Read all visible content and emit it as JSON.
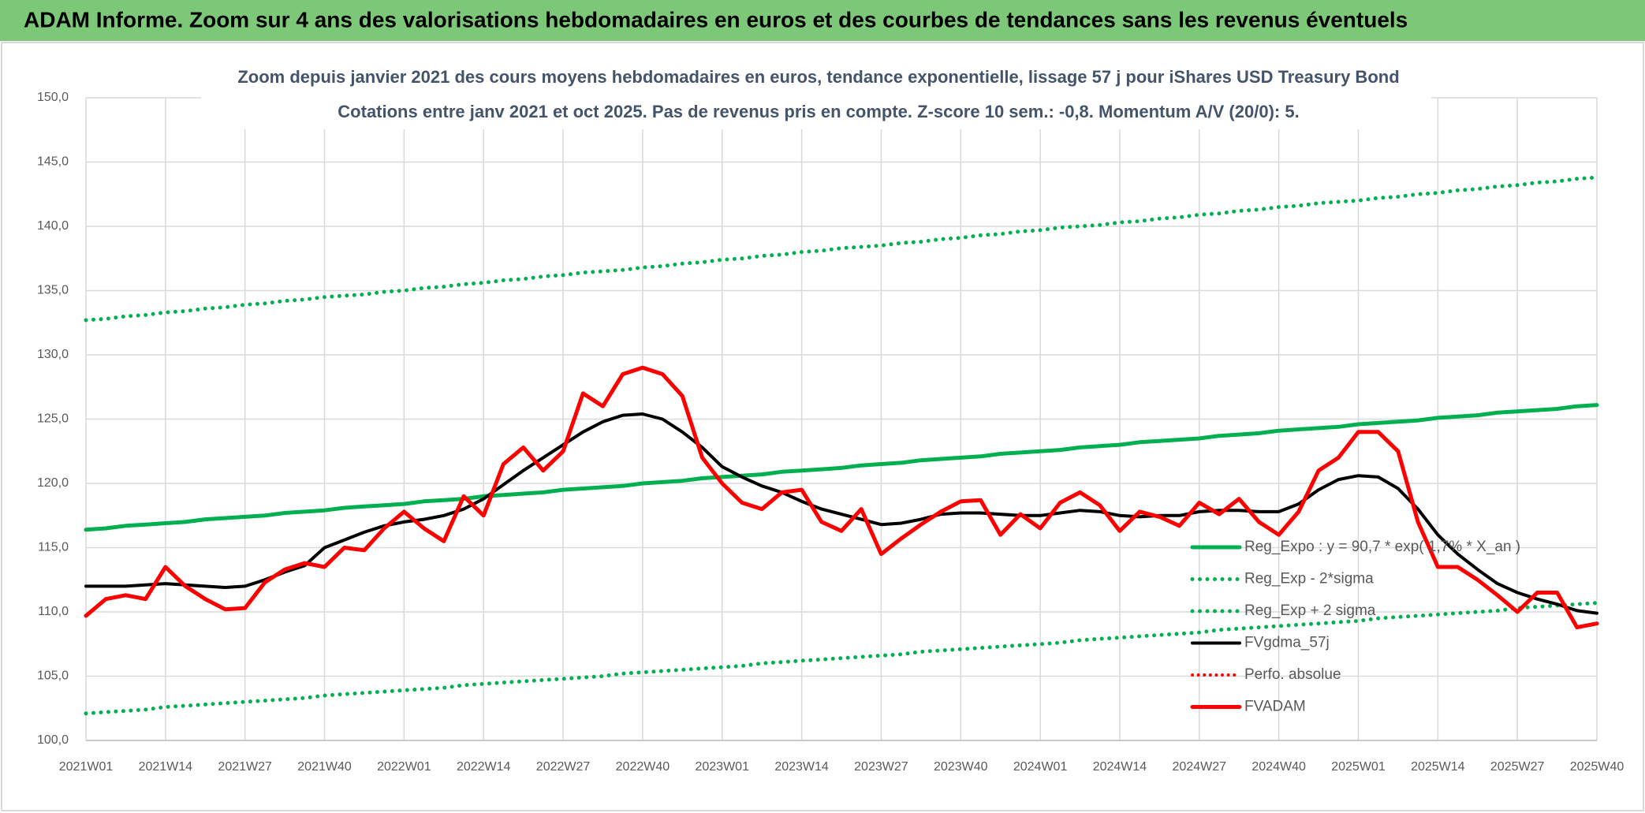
{
  "header": {
    "title": "ADAM Informe. Zoom sur 4 ans des valorisations hebdomadaires en euros et des courbes de tendances sans les revenus éventuels"
  },
  "chart_data": {
    "type": "line",
    "title": "Zoom depuis janvier 2021 des cours moyens hebdomadaires en euros, tendance exponentielle, lissage 57 j pour iShares USD Treasury Bond",
    "subtitle": "Cotations entre janv 2021 et oct 2025. Pas de revenus pris en compte. Z-score 10 sem.: -0,8. Momentum A/V (20/0): 5.",
    "categories": [
      "2021W01",
      null,
      null,
      null,
      "2021W14",
      null,
      null,
      null,
      "2021W27",
      null,
      null,
      null,
      "2021W40",
      null,
      null,
      null,
      "2022W01",
      null,
      null,
      null,
      "2022W14",
      null,
      null,
      null,
      "2022W27",
      null,
      null,
      null,
      "2022W40",
      null,
      null,
      null,
      "2023W01",
      null,
      null,
      null,
      "2023W14",
      null,
      null,
      null,
      "2023W27",
      null,
      null,
      null,
      "2023W40",
      null,
      null,
      null,
      "2024W01",
      null,
      null,
      null,
      "2024W14",
      null,
      null,
      null,
      "2024W27",
      null,
      null,
      null,
      "2024W40",
      null,
      null,
      null,
      "2025W01",
      null,
      null,
      null,
      "2025W14",
      null,
      null,
      null,
      "2025W27",
      null,
      null,
      null,
      "2025W40"
    ],
    "ylim": [
      100,
      150
    ],
    "yticks": [
      {
        "value": 100,
        "label": "100,0"
      },
      {
        "value": 105,
        "label": "105,0"
      },
      {
        "value": 110,
        "label": "110,0"
      },
      {
        "value": 115,
        "label": "115,0"
      },
      {
        "value": 120,
        "label": "120,0"
      },
      {
        "value": 125,
        "label": "125,0"
      },
      {
        "value": 130,
        "label": "130,0"
      },
      {
        "value": 135,
        "label": "135,0"
      },
      {
        "value": 140,
        "label": "140,0"
      },
      {
        "value": 145,
        "label": "145,0"
      },
      {
        "value": 150,
        "label": "150,0"
      }
    ],
    "grid": true,
    "legend": "right",
    "series": [
      {
        "name": "Reg_Expo : y = 90,7 * exp( 1,7% *  X_an )",
        "color": "#00b050",
        "dash": "solid",
        "width": 5,
        "values": [
          116.4,
          116.5,
          116.7,
          116.8,
          116.9,
          117.0,
          117.2,
          117.3,
          117.4,
          117.5,
          117.7,
          117.8,
          117.9,
          118.1,
          118.2,
          118.3,
          118.4,
          118.6,
          118.7,
          118.8,
          119.0,
          119.1,
          119.2,
          119.3,
          119.5,
          119.6,
          119.7,
          119.8,
          120.0,
          120.1,
          120.2,
          120.4,
          120.5,
          120.6,
          120.7,
          120.9,
          121.0,
          121.1,
          121.2,
          121.4,
          121.5,
          121.6,
          121.8,
          121.9,
          122.0,
          122.1,
          122.3,
          122.4,
          122.5,
          122.6,
          122.8,
          122.9,
          123.0,
          123.2,
          123.3,
          123.4,
          123.5,
          123.7,
          123.8,
          123.9,
          124.1,
          124.2,
          124.3,
          124.4,
          124.6,
          124.7,
          124.8,
          124.9,
          125.1,
          125.2,
          125.3,
          125.5,
          125.6,
          125.7,
          125.8,
          126.0,
          126.1
        ]
      },
      {
        "name": "Reg_Exp - 2*sigma",
        "color": "#00b050",
        "dash": "dotted",
        "width": 5,
        "values": [
          102.1,
          102.2,
          102.3,
          102.4,
          102.6,
          102.7,
          102.8,
          102.9,
          103.0,
          103.1,
          103.2,
          103.3,
          103.5,
          103.6,
          103.7,
          103.8,
          103.9,
          104.0,
          104.1,
          104.3,
          104.4,
          104.5,
          104.6,
          104.7,
          104.8,
          104.9,
          105.0,
          105.2,
          105.3,
          105.4,
          105.5,
          105.6,
          105.7,
          105.8,
          106.0,
          106.1,
          106.2,
          106.3,
          106.4,
          106.5,
          106.6,
          106.7,
          106.9,
          107.0,
          107.1,
          107.2,
          107.3,
          107.4,
          107.5,
          107.6,
          107.8,
          107.9,
          108.0,
          108.1,
          108.2,
          108.3,
          108.4,
          108.6,
          108.7,
          108.8,
          108.9,
          109.0,
          109.1,
          109.2,
          109.3,
          109.5,
          109.6,
          109.7,
          109.8,
          109.9,
          110.0,
          110.1,
          110.3,
          110.4,
          110.5,
          110.6,
          110.7
        ]
      },
      {
        "name": "Reg_Exp + 2 sigma",
        "color": "#00b050",
        "dash": "dotted",
        "width": 5,
        "values": [
          132.7,
          132.8,
          133.0,
          133.1,
          133.3,
          133.4,
          133.6,
          133.7,
          133.9,
          134.0,
          134.2,
          134.3,
          134.5,
          134.6,
          134.7,
          134.9,
          135.0,
          135.2,
          135.3,
          135.5,
          135.6,
          135.8,
          135.9,
          136.1,
          136.2,
          136.4,
          136.5,
          136.6,
          136.8,
          136.9,
          137.1,
          137.2,
          137.4,
          137.5,
          137.7,
          137.8,
          138.0,
          138.1,
          138.3,
          138.4,
          138.5,
          138.7,
          138.8,
          139.0,
          139.1,
          139.3,
          139.4,
          139.6,
          139.7,
          139.9,
          140.0,
          140.1,
          140.3,
          140.4,
          140.6,
          140.7,
          140.9,
          141.0,
          141.2,
          141.3,
          141.5,
          141.6,
          141.8,
          141.9,
          142.0,
          142.2,
          142.3,
          142.5,
          142.6,
          142.8,
          142.9,
          143.1,
          143.2,
          143.4,
          143.5,
          143.7,
          143.8
        ]
      },
      {
        "name": "FVgdma_57j",
        "color": "#000000",
        "dash": "solid",
        "width": 4,
        "values": [
          112.0,
          112.0,
          112.0,
          112.1,
          112.2,
          112.1,
          112.0,
          111.9,
          112.0,
          112.5,
          113.1,
          113.6,
          115.0,
          115.6,
          116.2,
          116.7,
          117.0,
          117.2,
          117.5,
          118.0,
          118.8,
          119.9,
          121.0,
          122.0,
          123.0,
          124.0,
          124.8,
          125.3,
          125.4,
          125.0,
          124.0,
          122.8,
          121.3,
          120.5,
          119.8,
          119.3,
          118.6,
          118.0,
          117.6,
          117.2,
          116.8,
          116.9,
          117.2,
          117.6,
          117.7,
          117.7,
          117.6,
          117.5,
          117.5,
          117.7,
          117.9,
          117.8,
          117.5,
          117.4,
          117.5,
          117.5,
          117.8,
          117.9,
          117.9,
          117.8,
          117.8,
          118.4,
          119.5,
          120.3,
          120.6,
          120.5,
          119.6,
          118.0,
          116.0,
          114.5,
          113.3,
          112.2,
          111.5,
          111.0,
          110.6,
          110.1,
          109.9
        ]
      },
      {
        "name": "Perfo. absolue",
        "color": "#ff0000",
        "dash": "dotted",
        "width": 4,
        "values": [
          null,
          null,
          null,
          null,
          null,
          null,
          null,
          null,
          null,
          null,
          null,
          null,
          null,
          null,
          null,
          null,
          null,
          null,
          null,
          null,
          null,
          null,
          null,
          null,
          null,
          null,
          null,
          null,
          null,
          null,
          null,
          null,
          null,
          null,
          null,
          null,
          null,
          null,
          null,
          null,
          null,
          null,
          null,
          null,
          null,
          null,
          null,
          null,
          null,
          null,
          null,
          null,
          null,
          null,
          null,
          null,
          null,
          null,
          null,
          null,
          null,
          null,
          null,
          null,
          null,
          null,
          null,
          null,
          null,
          null,
          null,
          null,
          null,
          null,
          null,
          null,
          null
        ]
      },
      {
        "name": "FVADAM",
        "color": "#ff0000",
        "dash": "solid",
        "width": 5,
        "values": [
          109.7,
          111.0,
          111.3,
          111.0,
          113.5,
          112.0,
          111.0,
          110.2,
          110.3,
          112.3,
          113.3,
          113.8,
          113.5,
          115.0,
          114.8,
          116.5,
          117.8,
          116.5,
          115.5,
          119.0,
          117.5,
          121.5,
          122.8,
          121.0,
          122.5,
          127.0,
          126.0,
          128.5,
          129.0,
          128.5,
          126.8,
          122.0,
          120.0,
          118.5,
          118.0,
          119.3,
          119.5,
          117.0,
          116.3,
          118.0,
          114.5,
          115.7,
          116.8,
          117.8,
          118.6,
          118.7,
          116.0,
          117.6,
          116.5,
          118.5,
          119.3,
          118.3,
          116.3,
          117.8,
          117.4,
          116.7,
          118.5,
          117.6,
          118.8,
          117.0,
          116.0,
          117.8,
          121.0,
          122.0,
          124.0,
          124.0,
          122.5,
          117.0,
          113.5,
          113.5,
          112.5,
          111.3,
          110.0,
          111.5,
          111.5,
          108.8,
          109.1
        ]
      }
    ]
  }
}
